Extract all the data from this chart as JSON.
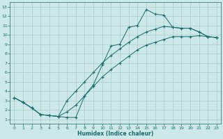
{
  "xlabel": "Humidex (Indice chaleur)",
  "bg_color": "#cce8e8",
  "grid_color": "#aacccc",
  "line_color": "#1a6b6b",
  "xlim": [
    -0.5,
    23.5
  ],
  "ylim": [
    0.5,
    13.5
  ],
  "xticks": [
    0,
    1,
    2,
    3,
    4,
    5,
    6,
    7,
    8,
    9,
    10,
    11,
    12,
    13,
    14,
    15,
    16,
    17,
    18,
    19,
    20,
    21,
    22,
    23
  ],
  "yticks": [
    1,
    2,
    3,
    4,
    5,
    6,
    7,
    8,
    9,
    10,
    11,
    12,
    13
  ],
  "curve1_x": [
    0,
    1,
    2,
    3,
    4,
    5,
    6,
    7,
    8,
    9,
    10,
    11,
    12,
    13,
    14,
    15,
    16,
    17,
    18,
    19,
    20,
    21,
    22,
    23
  ],
  "curve1_y": [
    3.3,
    2.8,
    2.2,
    1.5,
    1.4,
    1.3,
    1.2,
    1.2,
    3.5,
    4.7,
    6.8,
    8.8,
    9.0,
    10.8,
    11.0,
    12.7,
    12.2,
    12.1,
    10.8,
    10.7,
    10.7,
    10.3,
    9.8,
    9.7
  ],
  "curve2_x": [
    0,
    1,
    2,
    3,
    4,
    5,
    6,
    7,
    8,
    9,
    10,
    11,
    12,
    13,
    14,
    15,
    16,
    17,
    18,
    19,
    20,
    21,
    22,
    23
  ],
  "curve2_y": [
    3.3,
    2.8,
    2.2,
    1.5,
    1.4,
    1.3,
    3.0,
    4.0,
    5.0,
    6.0,
    7.0,
    7.8,
    8.5,
    9.2,
    9.8,
    10.3,
    10.6,
    10.9,
    10.8,
    10.7,
    10.7,
    10.3,
    9.8,
    9.7
  ],
  "curve3_x": [
    0,
    1,
    2,
    3,
    4,
    5,
    6,
    7,
    8,
    9,
    10,
    11,
    12,
    13,
    14,
    15,
    16,
    17,
    18,
    19,
    20,
    21,
    22,
    23
  ],
  "curve3_y": [
    3.3,
    2.8,
    2.2,
    1.5,
    1.4,
    1.3,
    1.8,
    2.5,
    3.5,
    4.5,
    5.5,
    6.3,
    7.0,
    7.7,
    8.4,
    8.9,
    9.2,
    9.5,
    9.8,
    9.8,
    9.8,
    9.9,
    9.8,
    9.7
  ]
}
